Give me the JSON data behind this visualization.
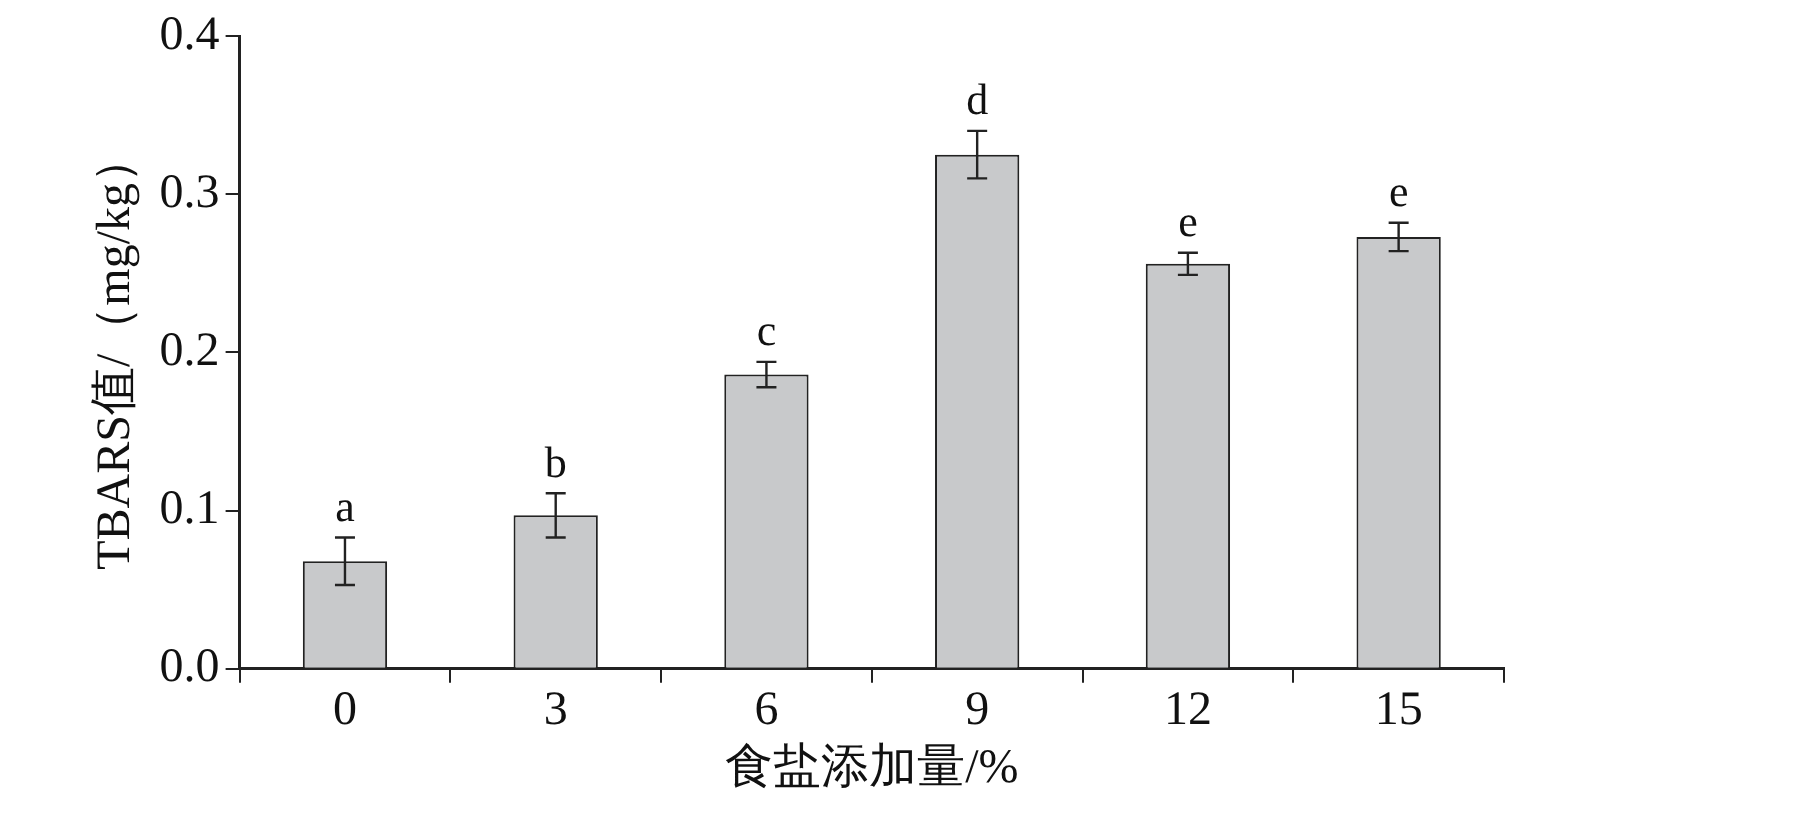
{
  "chart_data": {
    "type": "bar",
    "xlabel": "食盐添加量/%",
    "ylabel": "TBARS值/（mg/kg）",
    "categories": [
      "0",
      "3",
      "6",
      "9",
      "12",
      "15"
    ],
    "values": [
      0.068,
      0.097,
      0.186,
      0.325,
      0.256,
      0.273
    ],
    "errors": [
      0.015,
      0.014,
      0.008,
      0.015,
      0.007,
      0.009
    ],
    "color": "#c8c9cb",
    "ylim": [
      0,
      0.4
    ],
    "yticks": [
      {
        "value": 0,
        "label": "0.0"
      },
      0.1,
      0.2,
      0.3,
      0.4
    ],
    "grid": false,
    "legend": false,
    "annotations": [
      {
        "text": "a",
        "x": "0",
        "y": 0.083
      },
      {
        "text": "b",
        "x": "3",
        "y": 0.111
      },
      {
        "text": "c",
        "x": "6",
        "y": 0.194
      },
      {
        "text": "d",
        "x": "9",
        "y": 0.34
      },
      {
        "text": "e",
        "x": "12",
        "y": 0.263
      },
      {
        "text": "e",
        "x": "15",
        "y": 0.282
      }
    ]
  }
}
